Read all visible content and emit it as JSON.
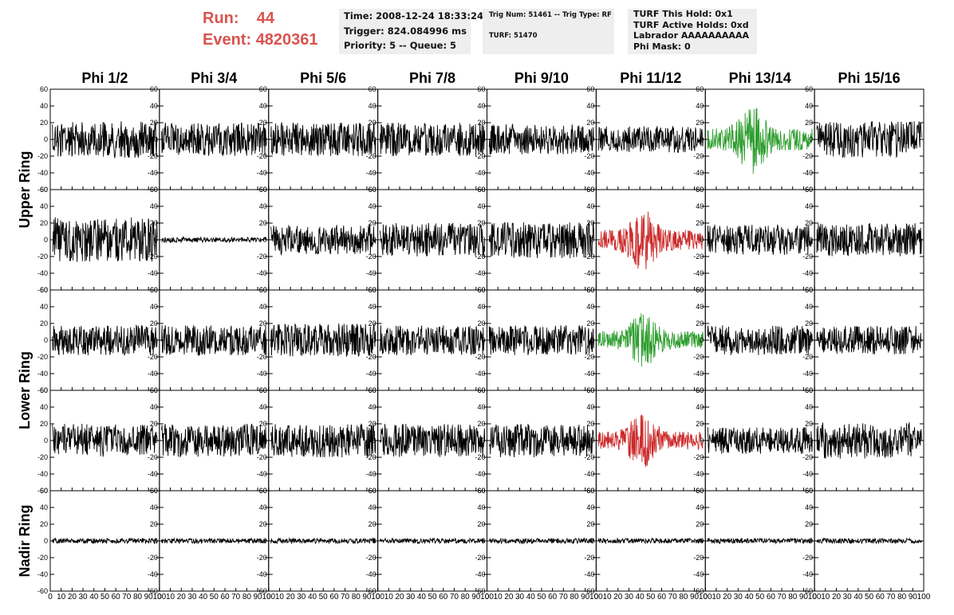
{
  "header": {
    "run_label": "Run:",
    "run_value": "44",
    "event_label": "Event:",
    "event_value": "4820361",
    "info_box_1": {
      "time": "Time: 2008-12-24 18:33:24",
      "trigger": "Trigger: 824.084996 ms",
      "priority": "Priority: 5 -- Queue: 5"
    },
    "info_box_2": {
      "trig": "Trig Num: 51461 -- Trig Type: RF",
      "turf": "TURF: 51470"
    },
    "info_box_3": {
      "hold": "TURF This Hold: 0x1",
      "active": "TURF Active Holds: 0xd",
      "labrador": "Labrador AAAAAAAAAA",
      "phimask": "Phi Mask: 0"
    }
  },
  "colors": {
    "normal": "#000000",
    "green": "#2e9e2e",
    "red": "#cc2a2a",
    "title": "#d9534f"
  },
  "chart_data": {
    "type": "line",
    "columns": [
      "Phi 1/2",
      "Phi 3/4",
      "Phi 5/6",
      "Phi 7/8",
      "Phi 9/10",
      "Phi 11/12",
      "Phi 13/14",
      "Phi 15/16"
    ],
    "rows": [
      "Upper Ring",
      "Lower Ring",
      "Nadir Ring"
    ],
    "xlim": [
      0,
      100
    ],
    "ylim": [
      -60,
      60
    ],
    "x_ticks": [
      0,
      10,
      20,
      30,
      40,
      50,
      60,
      70,
      80,
      90,
      100
    ],
    "y_ticks": [
      -60,
      -40,
      -20,
      0,
      20,
      40,
      60
    ],
    "samples_per_trace": 260,
    "panels": [
      [
        {
          "amp": 22,
          "color": "normal",
          "seed": 11
        },
        {
          "amp": 20,
          "color": "normal",
          "seed": 12
        },
        {
          "amp": 20,
          "color": "normal",
          "seed": 13
        },
        {
          "amp": 20,
          "color": "normal",
          "seed": 14
        },
        {
          "amp": 18,
          "color": "normal",
          "seed": 15
        },
        {
          "amp": 16,
          "color": "normal",
          "seed": 16
        },
        {
          "amp": 22,
          "color": "green",
          "seed": 17,
          "burst": true
        },
        {
          "amp": 22,
          "color": "normal",
          "seed": 18
        }
      ],
      [
        {
          "amp": 27,
          "color": "normal",
          "seed": 21
        },
        {
          "amp": 3,
          "color": "normal",
          "seed": 22
        },
        {
          "amp": 18,
          "color": "normal",
          "seed": 23
        },
        {
          "amp": 20,
          "color": "normal",
          "seed": 24
        },
        {
          "amp": 22,
          "color": "normal",
          "seed": 25
        },
        {
          "amp": 20,
          "color": "red",
          "seed": 26,
          "burst": true
        },
        {
          "amp": 18,
          "color": "normal",
          "seed": 27
        },
        {
          "amp": 20,
          "color": "normal",
          "seed": 28
        }
      ],
      [
        {
          "amp": 18,
          "color": "normal",
          "seed": 31
        },
        {
          "amp": 18,
          "color": "normal",
          "seed": 32
        },
        {
          "amp": 20,
          "color": "normal",
          "seed": 33
        },
        {
          "amp": 18,
          "color": "normal",
          "seed": 34
        },
        {
          "amp": 18,
          "color": "normal",
          "seed": 35
        },
        {
          "amp": 18,
          "color": "green",
          "seed": 36,
          "burst": true
        },
        {
          "amp": 18,
          "color": "normal",
          "seed": 37
        },
        {
          "amp": 17,
          "color": "normal",
          "seed": 38
        }
      ],
      [
        {
          "amp": 20,
          "color": "normal",
          "seed": 41
        },
        {
          "amp": 20,
          "color": "normal",
          "seed": 42
        },
        {
          "amp": 20,
          "color": "normal",
          "seed": 43
        },
        {
          "amp": 20,
          "color": "normal",
          "seed": 44
        },
        {
          "amp": 20,
          "color": "normal",
          "seed": 45
        },
        {
          "amp": 18,
          "color": "red",
          "seed": 46,
          "burst": true
        },
        {
          "amp": 16,
          "color": "normal",
          "seed": 47
        },
        {
          "amp": 22,
          "color": "normal",
          "seed": 48
        }
      ],
      [
        {
          "amp": 3,
          "color": "normal",
          "seed": 51
        },
        {
          "amp": 3,
          "color": "normal",
          "seed": 52
        },
        {
          "amp": 3,
          "color": "normal",
          "seed": 53
        },
        {
          "amp": 3,
          "color": "normal",
          "seed": 54
        },
        {
          "amp": 3,
          "color": "normal",
          "seed": 55
        },
        {
          "amp": 3,
          "color": "normal",
          "seed": 56
        },
        {
          "amp": 3,
          "color": "normal",
          "seed": 57
        },
        {
          "amp": 3,
          "color": "normal",
          "seed": 58
        }
      ]
    ]
  }
}
